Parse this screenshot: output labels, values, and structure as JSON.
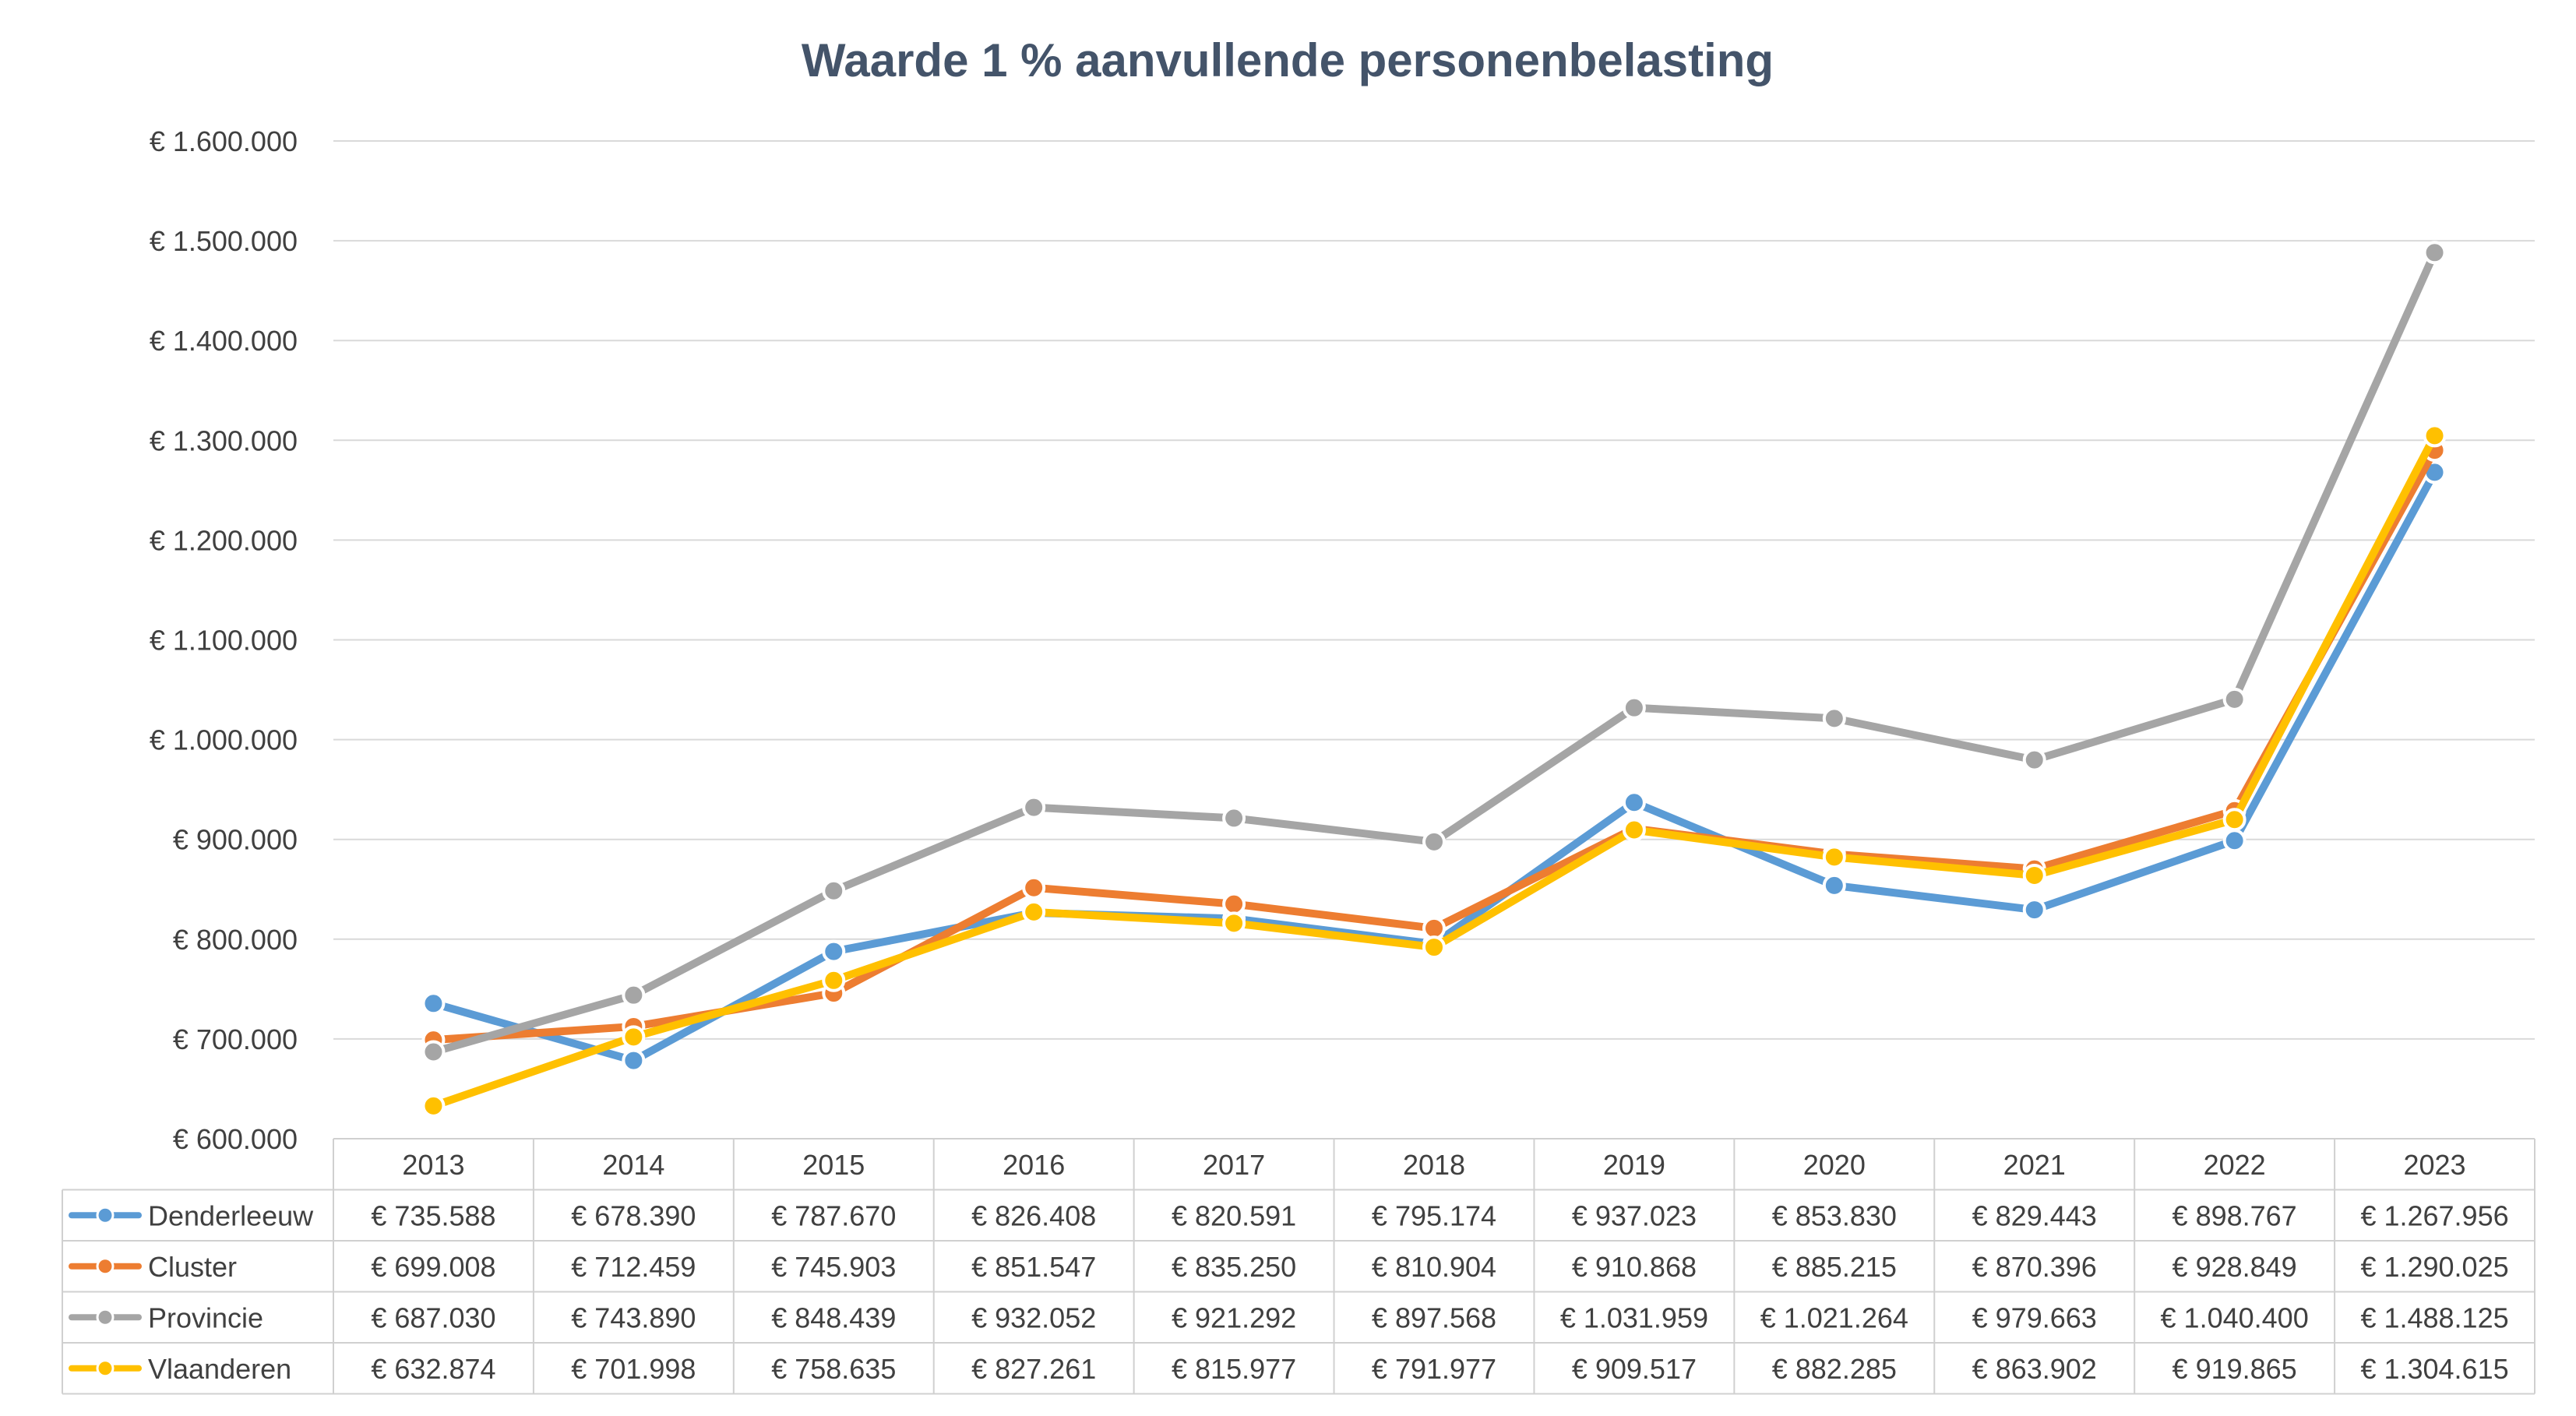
{
  "chart_data": {
    "type": "line",
    "title": "Waarde 1 % aanvullende personenbelasting",
    "categories": [
      "2013",
      "2014",
      "2015",
      "2016",
      "2017",
      "2018",
      "2019",
      "2020",
      "2021",
      "2022",
      "2023"
    ],
    "series": [
      {
        "name": "Denderleeuw",
        "color": "#5B9BD5",
        "values": [
          735588,
          678390,
          787670,
          826408,
          820591,
          795174,
          937023,
          853830,
          829443,
          898767,
          1267956
        ],
        "labels": [
          "€ 735.588",
          "€ 678.390",
          "€ 787.670",
          "€ 826.408",
          "€ 820.591",
          "€ 795.174",
          "€ 937.023",
          "€ 853.830",
          "€ 829.443",
          "€ 898.767",
          "€ 1.267.956"
        ]
      },
      {
        "name": "Cluster",
        "color": "#ED7D31",
        "values": [
          699008,
          712459,
          745903,
          851547,
          835250,
          810904,
          910868,
          885215,
          870396,
          928849,
          1290025
        ],
        "labels": [
          "€ 699.008",
          "€ 712.459",
          "€ 745.903",
          "€ 851.547",
          "€ 835.250",
          "€ 810.904",
          "€ 910.868",
          "€ 885.215",
          "€ 870.396",
          "€ 928.849",
          "€ 1.290.025"
        ]
      },
      {
        "name": "Provincie",
        "color": "#A5A5A5",
        "values": [
          687030,
          743890,
          848439,
          932052,
          921292,
          897568,
          1031959,
          1021264,
          979663,
          1040400,
          1488125
        ],
        "labels": [
          "€ 687.030",
          "€ 743.890",
          "€ 848.439",
          "€ 932.052",
          "€ 921.292",
          "€ 897.568",
          "€ 1.031.959",
          "€ 1.021.264",
          "€ 979.663",
          "€ 1.040.400",
          "€ 1.488.125"
        ]
      },
      {
        "name": "Vlaanderen",
        "color": "#FFC000",
        "values": [
          632874,
          701998,
          758635,
          827261,
          815977,
          791977,
          909517,
          882285,
          863902,
          919865,
          1304615
        ],
        "labels": [
          "€ 632.874",
          "€ 701.998",
          "€ 758.635",
          "€ 827.261",
          "€ 815.977",
          "€ 791.977",
          "€ 909.517",
          "€ 882.285",
          "€ 863.902",
          "€ 919.865",
          "€ 1.304.615"
        ]
      }
    ],
    "ylim": [
      600000,
      1600000
    ],
    "ytick_values": [
      600000,
      700000,
      800000,
      900000,
      1000000,
      1100000,
      1200000,
      1300000,
      1400000,
      1500000,
      1600000
    ],
    "ytick_labels": [
      "€ 600.000",
      "€ 700.000",
      "€ 800.000",
      "€ 900.000",
      "€ 1.000.000",
      "€ 1.100.000",
      "€ 1.200.000",
      "€ 1.300.000",
      "€ 1.400.000",
      "€ 1.500.000",
      "€ 1.600.000"
    ],
    "grid": true,
    "legend": "data-table-below"
  }
}
